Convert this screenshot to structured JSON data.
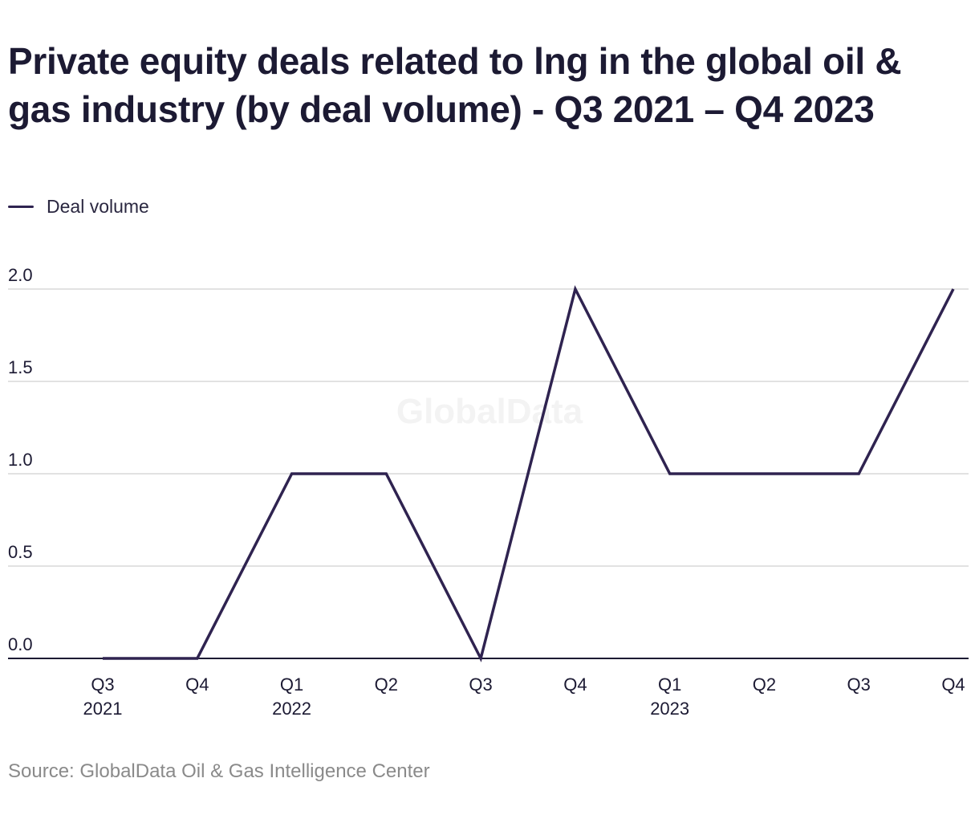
{
  "chart_data": {
    "type": "line",
    "title": "Private equity deals related to lng in the global oil & gas industry (by deal volume) - Q3 2021 – Q4 2023",
    "categories": [
      [
        "Q3",
        "2021"
      ],
      [
        "Q4",
        ""
      ],
      [
        "Q1",
        "2022"
      ],
      [
        "Q2",
        ""
      ],
      [
        "Q3",
        ""
      ],
      [
        "Q4",
        ""
      ],
      [
        "Q1",
        "2023"
      ],
      [
        "Q2",
        ""
      ],
      [
        "Q3",
        ""
      ],
      [
        "Q4",
        ""
      ]
    ],
    "series": [
      {
        "name": "Deal volume",
        "values": [
          0,
          0,
          1,
          1,
          0,
          2,
          1,
          1,
          1,
          2
        ]
      }
    ],
    "yticks": [
      "0.0",
      "0.5",
      "1.0",
      "1.5",
      "2.0"
    ],
    "ylim": [
      0,
      2
    ],
    "xlabel": "",
    "ylabel": "",
    "grid": true,
    "legend": "top-left",
    "watermark": "GlobalData",
    "source": "Source: GlobalData Oil & Gas Intelligence Center",
    "colors": {
      "line": "#2f2350",
      "grid": "#d9d9d9",
      "axis": "#1c1a33",
      "tick_text": "#1c1a33",
      "watermark": "#f3f3f3"
    }
  }
}
